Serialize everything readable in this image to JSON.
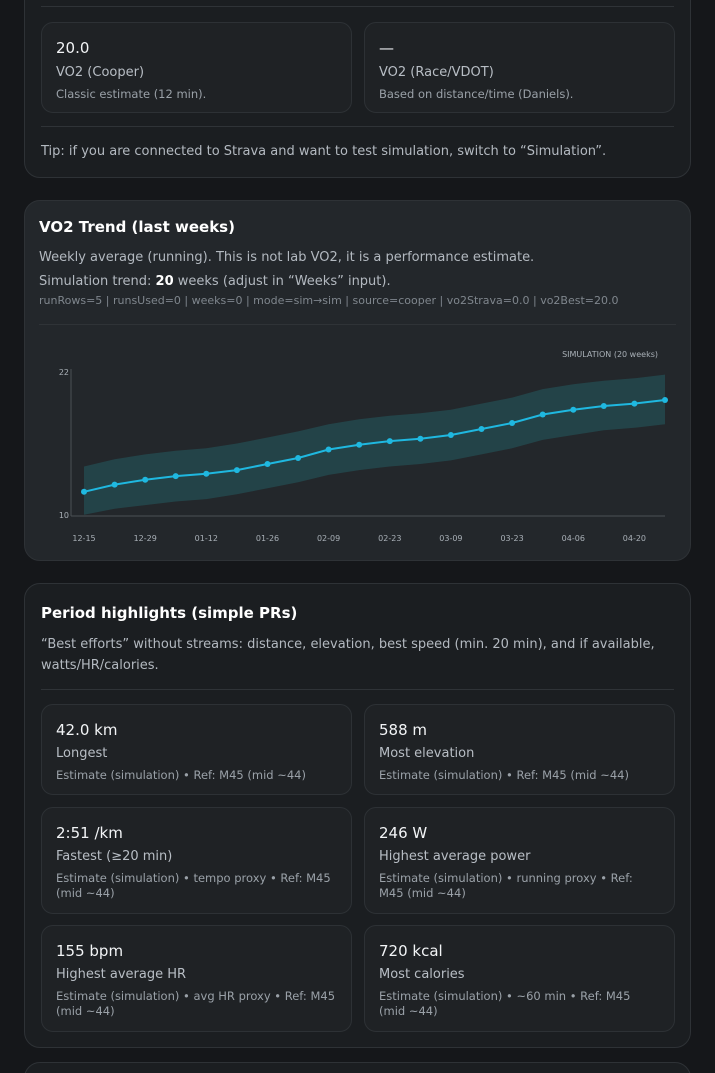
{
  "vo2_panel": {
    "cards": [
      {
        "value": "20.0",
        "label": "VO2 (Cooper)",
        "desc": "Classic estimate (12 min)."
      },
      {
        "value": "—",
        "label": "VO2 (Race/VDOT)",
        "desc": "Based on distance/time (Daniels)."
      }
    ],
    "tip": "Tip: if you are connected to Strava and want to test simulation, switch to “Simulation”."
  },
  "trend_panel": {
    "title": "VO2 Trend (last weeks)",
    "subtitle": "Weekly average (running). This is not lab VO2, it is a performance estimate.",
    "sim_prefix": "Simulation trend: ",
    "sim_weeks": "20",
    "sim_suffix": " weeks (adjust in “Weeks” input).",
    "debug": "runRows=5 | runsUsed=0 | weeks=0 | mode=sim→sim | source=cooper | vo2Strava=0.0 | vo2Best=20.0"
  },
  "chart_data": {
    "type": "line",
    "badge": "SIMULATION (20 weeks)",
    "ylim": [
      10,
      22
    ],
    "yticks": [
      "22",
      "10"
    ],
    "xticks": [
      "12-15",
      "12-29",
      "01-12",
      "01-26",
      "02-09",
      "02-23",
      "03-09",
      "03-23",
      "04-06",
      "04-20"
    ],
    "values": [
      12.0,
      12.6,
      13.0,
      13.3,
      13.5,
      13.8,
      14.3,
      14.8,
      15.5,
      15.9,
      16.2,
      16.4,
      16.7,
      17.2,
      17.7,
      18.4,
      18.8,
      19.1,
      19.3,
      19.6
    ],
    "band_lower": [
      10.1,
      10.6,
      10.9,
      11.2,
      11.4,
      11.8,
      12.3,
      12.8,
      13.4,
      13.8,
      14.1,
      14.3,
      14.6,
      15.1,
      15.6,
      16.3,
      16.7,
      17.1,
      17.3,
      17.6
    ],
    "band_upper": [
      14.1,
      14.7,
      15.1,
      15.4,
      15.6,
      16.0,
      16.5,
      17.0,
      17.6,
      18.0,
      18.3,
      18.5,
      18.8,
      19.3,
      19.8,
      20.5,
      20.9,
      21.2,
      21.4,
      21.7
    ],
    "colors": {
      "line": "#1fb8e0",
      "band": "#24474b"
    }
  },
  "highlights": {
    "title": "Period highlights (simple PRs)",
    "desc_line1": "“Best efforts” without streams: distance, elevation, best speed (min. 20 min), and if available,",
    "desc_line2": "watts/HR/calories.",
    "cards": [
      {
        "value": "42.0 km",
        "label": "Longest",
        "desc": "Estimate (simulation) • Ref: M45 (mid ~44)"
      },
      {
        "value": "588 m",
        "label": "Most elevation",
        "desc": "Estimate (simulation) • Ref: M45 (mid ~44)"
      },
      {
        "value": "2:51 /km",
        "label": "Fastest (≥20 min)",
        "desc": "Estimate (simulation) • tempo proxy • Ref: M45 (mid ~44)"
      },
      {
        "value": "246 W",
        "label": "Highest average power",
        "desc": "Estimate (simulation) • running proxy • Ref: M45 (mid ~44)"
      },
      {
        "value": "155 bpm",
        "label": "Highest average HR",
        "desc": "Estimate (simulation) • avg HR proxy • Ref: M45 (mid ~44)"
      },
      {
        "value": "720 kcal",
        "label": "Most calories",
        "desc": "Estimate (simulation) • ~60 min • Ref: M45 (mid ~44)"
      }
    ]
  }
}
